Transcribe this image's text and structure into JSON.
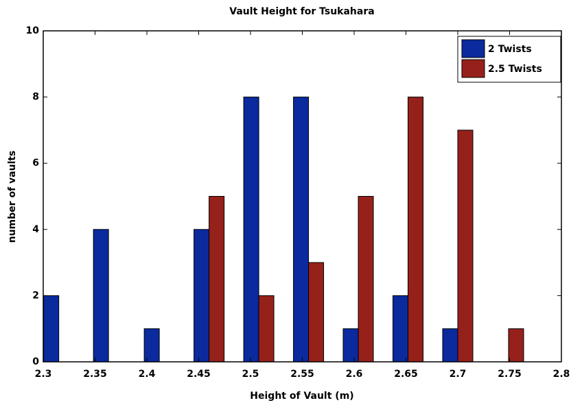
{
  "chart_data": {
    "type": "bar",
    "title": "Vault Height for Tsukahara",
    "x_label": "Height of Vault (m)",
    "y_label": "number of vaults",
    "x": [
      2.315,
      2.363,
      2.412,
      2.46,
      2.508,
      2.556,
      2.604,
      2.652,
      2.7,
      2.749
    ],
    "series": [
      {
        "name": "2 Twists",
        "color": "#0a2a9e",
        "values": [
          2,
          4,
          1,
          4,
          8,
          8,
          1,
          2,
          1,
          0
        ]
      },
      {
        "name": "2.5 Twists",
        "color": "#96211b",
        "values": [
          0,
          0,
          0,
          5,
          2,
          3,
          5,
          8,
          7,
          1
        ]
      }
    ],
    "xlim": [
      2.3,
      2.8
    ],
    "xticks": [
      2.3,
      2.35,
      2.4,
      2.45,
      2.5,
      2.55,
      2.6,
      2.65,
      2.7,
      2.75,
      2.8
    ],
    "ylim": [
      0,
      10
    ],
    "yticks": [
      0,
      2,
      4,
      6,
      8,
      10
    ],
    "grid": false,
    "legend": "top-right"
  }
}
